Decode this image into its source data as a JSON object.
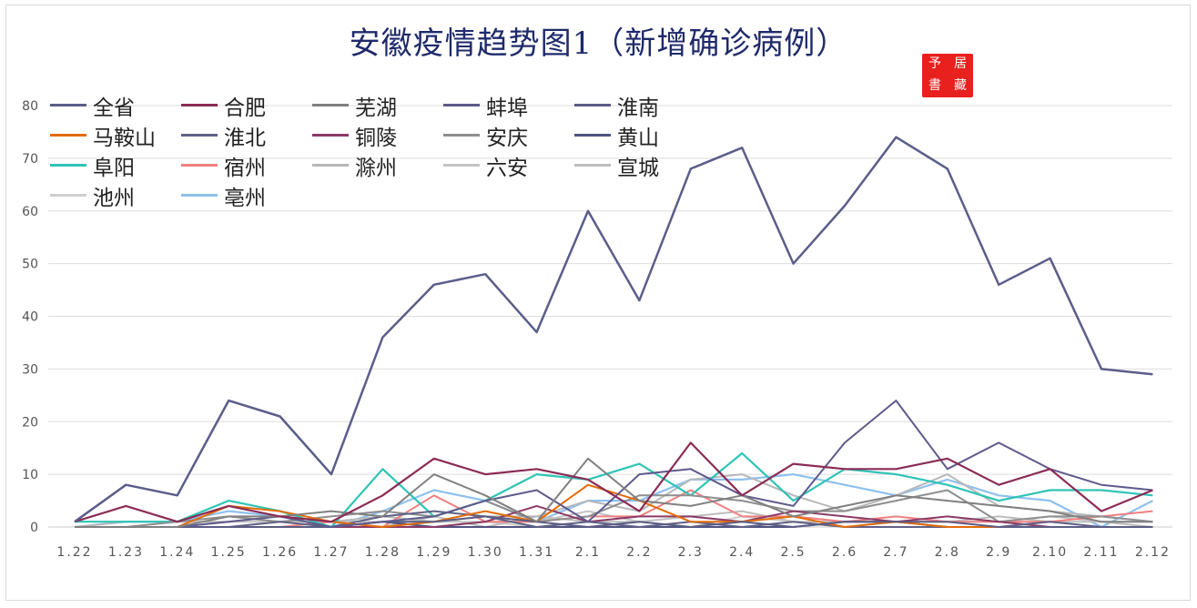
{
  "title": "安徽疫情趋势图1（新增确诊病例）",
  "seal": {
    "chars": [
      "書",
      "居",
      "予",
      "藏"
    ]
  },
  "chart_data": {
    "type": "line",
    "x": [
      "1.22",
      "1.23",
      "1.24",
      "1.25",
      "1.26",
      "1.27",
      "1.28",
      "1.29",
      "1.30",
      "1.31",
      "2.1",
      "2.2",
      "2.3",
      "2.4",
      "2.5",
      "2.6",
      "2.7",
      "2.8",
      "2.9",
      "2.10",
      "2.11",
      "2.12"
    ],
    "ylim": [
      0,
      80
    ],
    "yticks": [
      0,
      10,
      20,
      30,
      40,
      50,
      60,
      70,
      80
    ],
    "grid": true,
    "legend_position": "top-left",
    "series": [
      {
        "name": "全省",
        "color": "#5b5d8a",
        "width": 2.5,
        "values": [
          1,
          8,
          6,
          24,
          21,
          10,
          36,
          46,
          48,
          37,
          60,
          43,
          68,
          72,
          50,
          61,
          74,
          68,
          46,
          51,
          30,
          29
        ]
      },
      {
        "name": "合肥",
        "color": "#8b2c55",
        "width": 2.2,
        "values": [
          1,
          4,
          1,
          4,
          2,
          1,
          6,
          13,
          10,
          11,
          9,
          3,
          16,
          6,
          12,
          11,
          11,
          13,
          8,
          11,
          3,
          7
        ]
      },
      {
        "name": "芜湖",
        "color": "#808080",
        "width": 2,
        "values": [
          0,
          0,
          0,
          2,
          2,
          3,
          2,
          10,
          6,
          1,
          13,
          5,
          4,
          6,
          2,
          4,
          6,
          5,
          4,
          3,
          1,
          1
        ]
      },
      {
        "name": "蚌埠",
        "color": "#5e5a8c",
        "width": 2,
        "values": [
          0,
          0,
          0,
          1,
          2,
          0,
          1,
          2,
          5,
          7,
          1,
          10,
          11,
          6,
          4,
          16,
          24,
          11,
          16,
          11,
          8,
          7
        ]
      },
      {
        "name": "淮南",
        "color": "#5a5c84",
        "width": 2,
        "values": [
          0,
          0,
          0,
          0,
          0,
          0,
          1,
          1,
          2,
          1,
          0,
          1,
          0,
          1,
          0,
          1,
          1,
          1,
          0,
          0,
          0,
          0
        ]
      },
      {
        "name": "马鞍山",
        "color": "#e36c09",
        "width": 2,
        "values": [
          0,
          0,
          0,
          4,
          3,
          1,
          0,
          1,
          3,
          1,
          8,
          5,
          1,
          1,
          2,
          0,
          1,
          0,
          0,
          0,
          0,
          0
        ]
      },
      {
        "name": "淮北",
        "color": "#606186",
        "width": 2,
        "values": [
          0,
          0,
          0,
          0,
          1,
          0,
          2,
          3,
          2,
          0,
          1,
          0,
          1,
          0,
          1,
          0,
          0,
          0,
          0,
          1,
          0,
          0
        ]
      },
      {
        "name": "铜陵",
        "color": "#8b3a66",
        "width": 2,
        "values": [
          0,
          0,
          0,
          0,
          0,
          0,
          0,
          0,
          1,
          4,
          1,
          2,
          2,
          1,
          3,
          2,
          1,
          2,
          1,
          0,
          0,
          0
        ]
      },
      {
        "name": "安庆",
        "color": "#8e8e8e",
        "width": 2,
        "values": [
          0,
          0,
          1,
          2,
          1,
          2,
          3,
          2,
          5,
          1,
          2,
          6,
          6,
          5,
          3,
          3,
          5,
          7,
          1,
          2,
          2,
          1
        ]
      },
      {
        "name": "黄山",
        "color": "#4f5380",
        "width": 2,
        "values": [
          0,
          0,
          0,
          0,
          0,
          0,
          1,
          0,
          0,
          0,
          0,
          0,
          0,
          0,
          0,
          1,
          1,
          0,
          0,
          0,
          0,
          0
        ]
      },
      {
        "name": "阜阳",
        "color": "#2ec4b6",
        "width": 2.2,
        "values": [
          1,
          1,
          1,
          5,
          3,
          0,
          11,
          2,
          5,
          10,
          9,
          12,
          6,
          14,
          5,
          11,
          10,
          8,
          5,
          7,
          7,
          6
        ]
      },
      {
        "name": "宿州",
        "color": "#f08080",
        "width": 2,
        "values": [
          0,
          0,
          0,
          0,
          0,
          1,
          0,
          6,
          1,
          1,
          2,
          2,
          7,
          2,
          2,
          1,
          2,
          1,
          1,
          1,
          2,
          3
        ]
      },
      {
        "name": "滁州",
        "color": "#b8b8b8",
        "width": 2,
        "values": [
          0,
          1,
          1,
          1,
          2,
          1,
          2,
          1,
          2,
          2,
          5,
          3,
          9,
          10,
          6,
          3,
          6,
          10,
          4,
          3,
          2,
          1
        ]
      },
      {
        "name": "六安",
        "color": "#c4c4c4",
        "width": 2,
        "values": [
          0,
          0,
          0,
          1,
          1,
          1,
          1,
          1,
          1,
          1,
          3,
          1,
          2,
          1,
          2,
          1,
          1,
          1,
          1,
          2,
          1,
          1
        ]
      },
      {
        "name": "宣城",
        "color": "#bdbdbd",
        "width": 2,
        "values": [
          0,
          0,
          0,
          0,
          1,
          0,
          0,
          2,
          0,
          2,
          1,
          1,
          2,
          3,
          1,
          1,
          1,
          1,
          2,
          1,
          1,
          0
        ]
      },
      {
        "name": "池州",
        "color": "#cfcfcf",
        "width": 2,
        "values": [
          0,
          0,
          0,
          0,
          0,
          0,
          1,
          0,
          1,
          0,
          0,
          1,
          0,
          2,
          1,
          0,
          1,
          0,
          0,
          0,
          0,
          0
        ]
      },
      {
        "name": "亳州",
        "color": "#8ec1ef",
        "width": 2.2,
        "values": [
          0,
          1,
          1,
          3,
          2,
          0,
          3,
          7,
          5,
          1,
          5,
          5,
          9,
          9,
          10,
          8,
          6,
          9,
          6,
          5,
          0,
          5
        ]
      }
    ]
  }
}
